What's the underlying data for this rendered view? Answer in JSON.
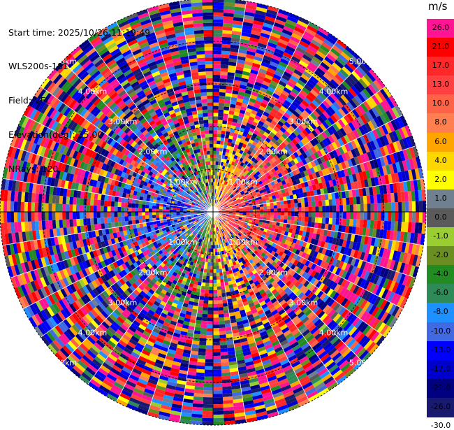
{
  "info": {
    "start_time": "Start time: 2025/10/26 11:19:49",
    "instrument": "WLS200s-181",
    "field": "Field: VEL",
    "elevation": "Elevation(deg): 35.00",
    "nrays": "NRays: 120"
  },
  "colorbar": {
    "unit": "m/s",
    "ticks": [
      "26.0",
      "21.0",
      "17.0",
      "13.0",
      "10.0",
      "8.0",
      "6.0",
      "4.0",
      "2.0",
      "1.0",
      "0.0",
      "-1.0",
      "-2.0",
      "-4.0",
      "-6.0",
      "-8.0",
      "-10.0",
      "-13.0",
      "-17.0",
      "-21.0",
      "-26.0",
      "-30.0"
    ],
    "colors": [
      "#ff1493",
      "#ff0000",
      "#ff2828",
      "#ff4040",
      "#ff6347",
      "#ff7f50",
      "#ffa500",
      "#ffd700",
      "#ffff00",
      "#708090",
      "#5a5a5a",
      "#9acd32",
      "#6b8e23",
      "#228b22",
      "#2e8b57",
      "#1e90ff",
      "#4169e1",
      "#0000ff",
      "#0000cd",
      "#000080",
      "#191970"
    ]
  },
  "chart_data": {
    "type": "heatmap",
    "projection": "polar PPI",
    "field": "VEL",
    "unit": "m/s",
    "elevation_deg": 35.0,
    "n_rays": 120,
    "range_ring_labels_km": [
      "1.00km",
      "2.00km",
      "3.00km",
      "4.00km",
      "5.00km"
    ],
    "range_ring_values_km": [
      1,
      2,
      3,
      4,
      5
    ],
    "color_levels": [
      -30,
      -26,
      -21,
      -17,
      -13,
      -10,
      -8,
      -6,
      -4,
      -2,
      -1,
      0,
      1,
      2,
      4,
      6,
      8,
      10,
      13,
      17,
      21,
      26
    ],
    "outer_range_km": 5.0,
    "label_azimuths_deg": [
      45,
      135,
      225,
      315
    ],
    "grid": true,
    "legend": "right colorbar"
  }
}
